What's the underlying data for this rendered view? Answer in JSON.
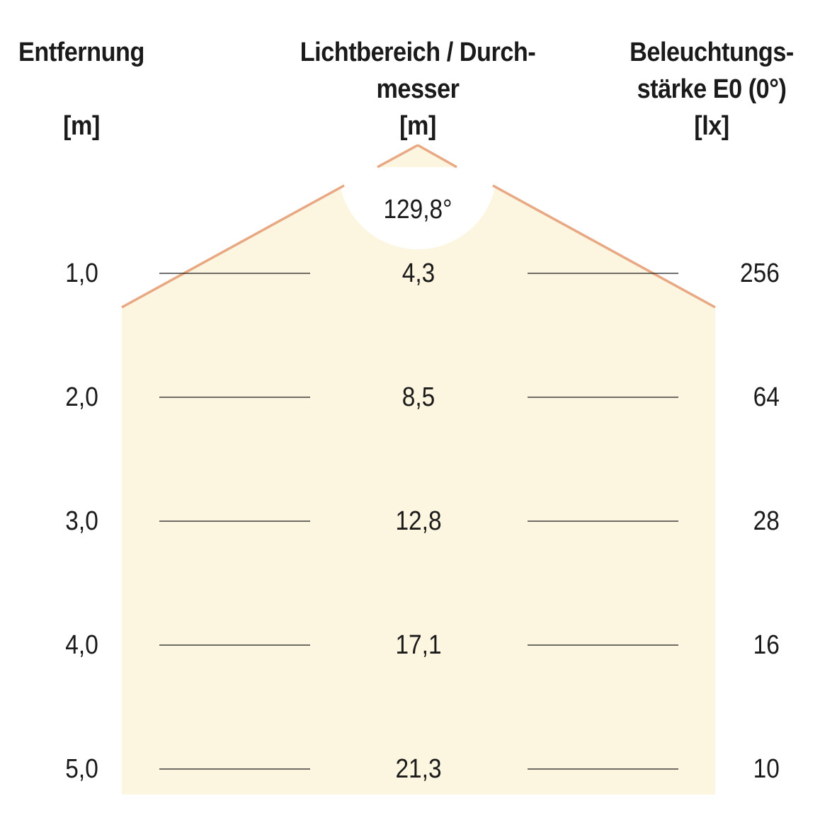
{
  "headers": {
    "distance": {
      "line1": "Entfernung",
      "unit": "[m]"
    },
    "diameter": {
      "line1": "Lichtbereich / Durch-",
      "line2": "messer",
      "unit": "[m]"
    },
    "illuminance": {
      "line1": "Beleuchtungs-",
      "line2": "stärke E0 (0°)",
      "unit": "[lx]"
    }
  },
  "beam_angle": "129,8°",
  "rows": [
    {
      "distance": "1,0",
      "diameter": "4,3",
      "lux": "256"
    },
    {
      "distance": "2,0",
      "diameter": "8,5",
      "lux": "64"
    },
    {
      "distance": "3,0",
      "diameter": "12,8",
      "lux": "28"
    },
    {
      "distance": "4,0",
      "diameter": "17,1",
      "lux": "16"
    },
    {
      "distance": "5,0",
      "diameter": "21,3",
      "lux": "10"
    }
  ],
  "colors": {
    "light_area": "#fcf5df",
    "beam_edge": "#e8a883",
    "rule_line": "#1a1a1a"
  }
}
